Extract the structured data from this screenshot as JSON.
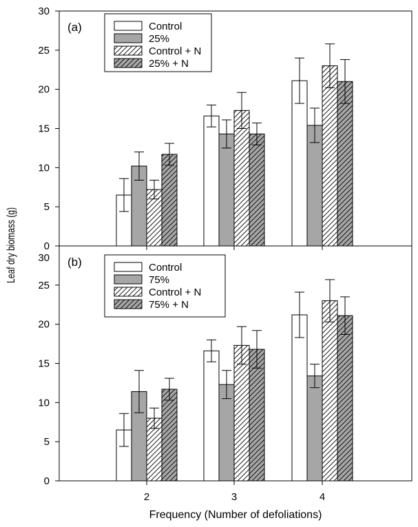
{
  "chart_data": [
    {
      "type": "bar",
      "panel_label": "(a)",
      "categories": [
        "2",
        "3",
        "4"
      ],
      "series": [
        {
          "name": "Control",
          "values": [
            6.5,
            16.6,
            21.1
          ],
          "errors": [
            2.1,
            1.4,
            2.9
          ],
          "fill": "white"
        },
        {
          "name": "25%",
          "values": [
            10.2,
            14.3,
            15.4
          ],
          "errors": [
            1.8,
            1.8,
            2.2
          ],
          "fill": "gray"
        },
        {
          "name": "Control + N",
          "values": [
            7.2,
            17.3,
            23.0
          ],
          "errors": [
            1.2,
            2.3,
            2.8
          ],
          "fill": "white-hatched"
        },
        {
          "name": "25% + N",
          "values": [
            11.7,
            14.3,
            21.0
          ],
          "errors": [
            1.4,
            1.4,
            2.8
          ],
          "fill": "gray-hatched"
        }
      ],
      "ylim": [
        0,
        30
      ],
      "yticks": [
        0,
        5,
        10,
        15,
        20,
        25,
        30
      ],
      "legend_position": "top-left",
      "grid": false
    },
    {
      "type": "bar",
      "panel_label": "(b)",
      "categories": [
        "2",
        "3",
        "4"
      ],
      "series": [
        {
          "name": "Control",
          "values": [
            6.5,
            16.6,
            21.2
          ],
          "errors": [
            2.1,
            1.4,
            2.9
          ],
          "fill": "white"
        },
        {
          "name": "75%",
          "values": [
            11.4,
            12.3,
            13.4
          ],
          "errors": [
            2.7,
            1.8,
            1.5
          ],
          "fill": "gray"
        },
        {
          "name": "Control + N",
          "values": [
            8.0,
            17.3,
            23.0
          ],
          "errors": [
            1.3,
            2.4,
            2.7
          ],
          "fill": "white-hatched"
        },
        {
          "name": "75% + N",
          "values": [
            11.7,
            16.8,
            21.1
          ],
          "errors": [
            1.4,
            2.4,
            2.4
          ],
          "fill": "gray-hatched"
        }
      ],
      "ylim": [
        0,
        30
      ],
      "yticks": [
        0,
        5,
        10,
        15,
        20,
        25,
        30
      ],
      "legend_position": "top-left",
      "grid": false
    }
  ],
  "xlabel": "Frequency (Number of defoliations)",
  "ylabel": "Leaf dry biomass (g)",
  "colors": {
    "gray_fill": "#a6a6a6",
    "white_fill": "#ffffff",
    "stroke": "#000000"
  }
}
